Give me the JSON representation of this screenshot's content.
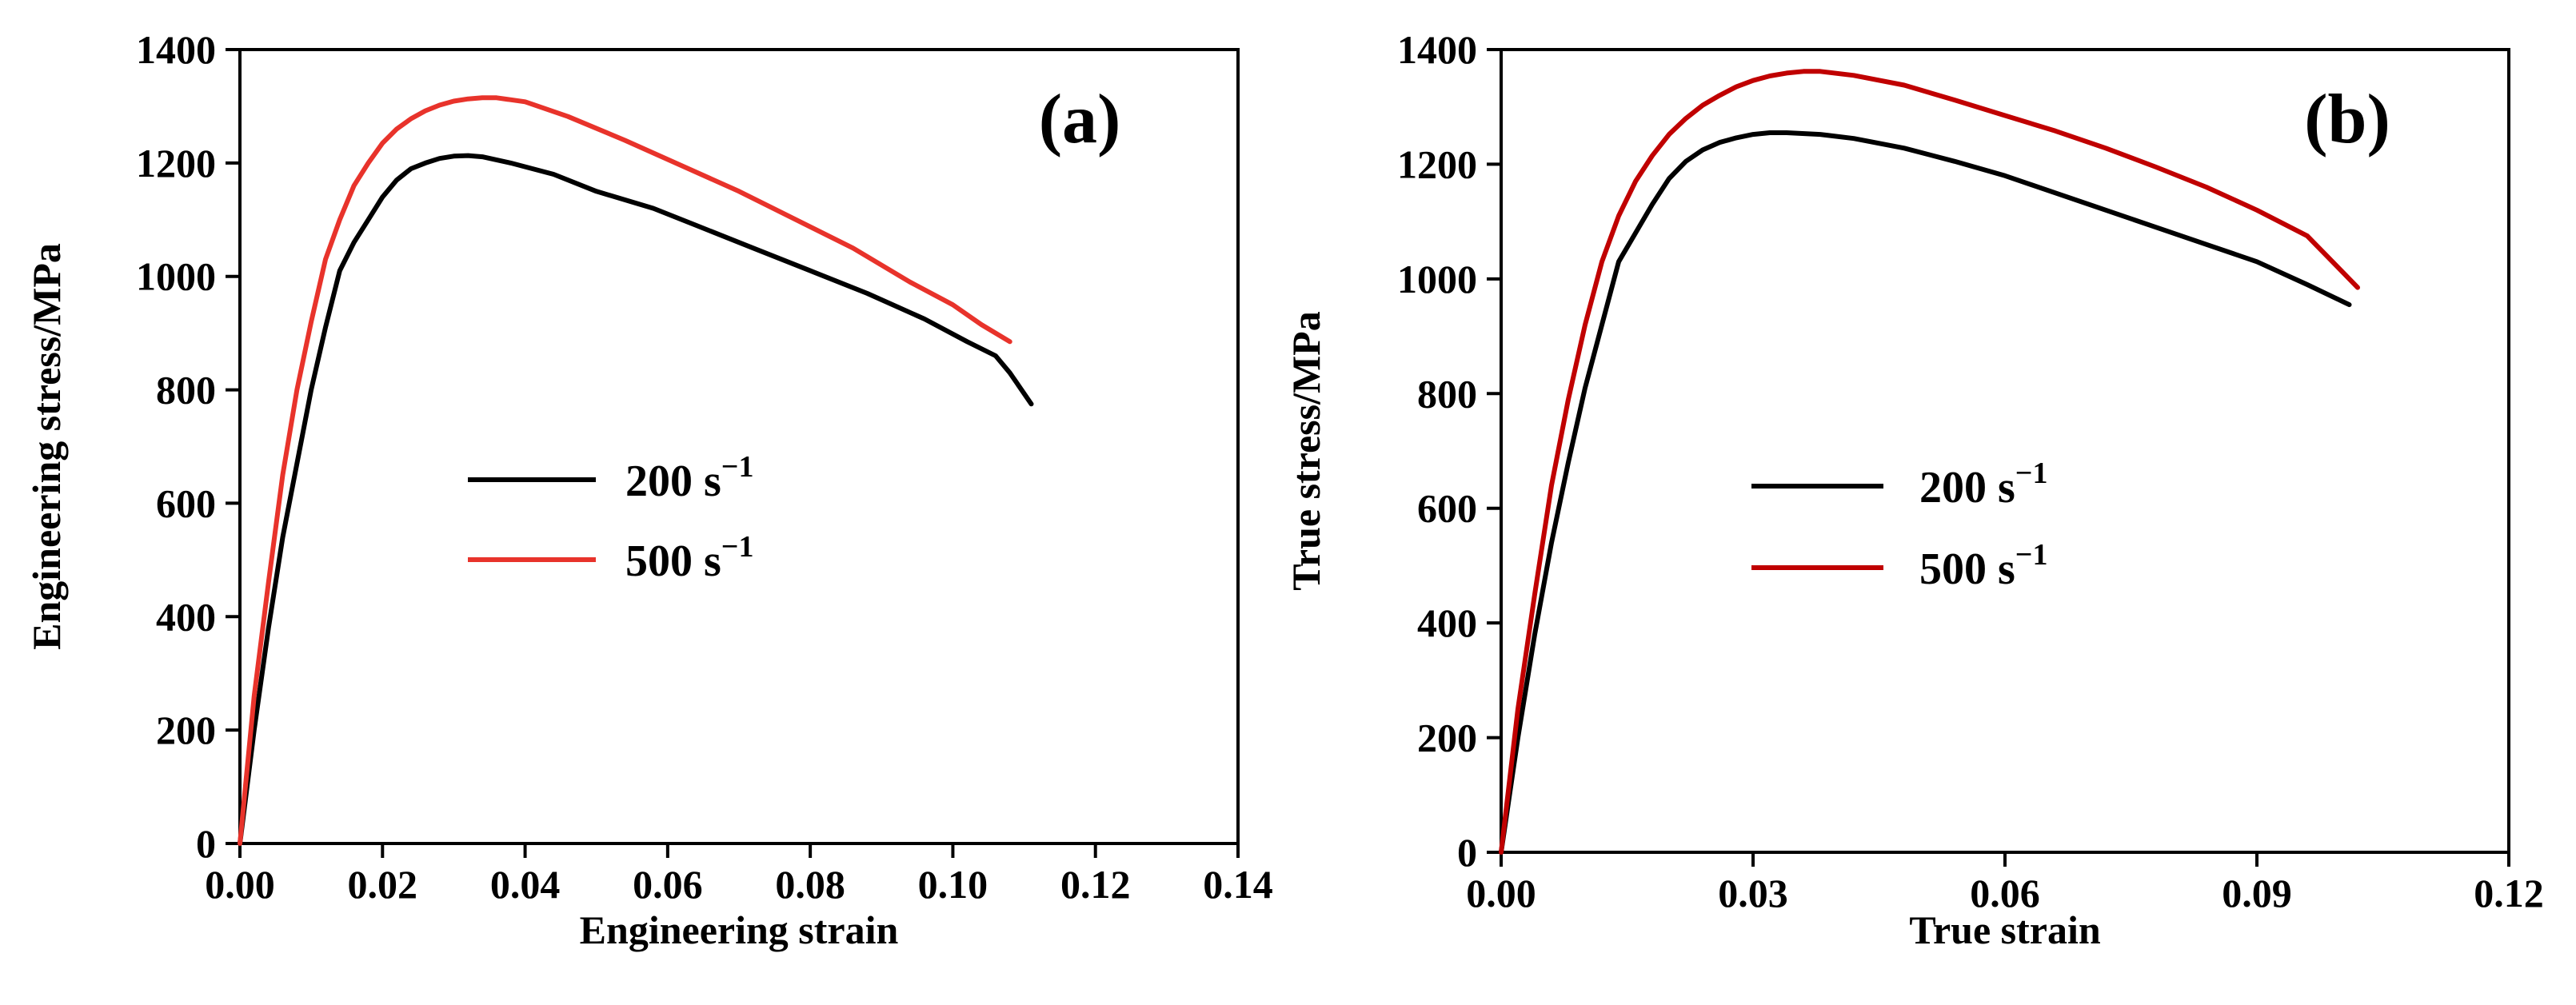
{
  "chart_data": [
    {
      "type": "line",
      "panel_label": "(a)",
      "xlabel": "Engineering strain",
      "ylabel": "Engineering stress/MPa",
      "xlim": [
        0,
        0.14
      ],
      "ylim": [
        0,
        1400
      ],
      "xticks": [
        "0.00",
        "0.02",
        "0.04",
        "0.06",
        "0.08",
        "0.10",
        "0.12",
        "0.14"
      ],
      "yticks": [
        "0",
        "200",
        "400",
        "600",
        "800",
        "1000",
        "1200",
        "1400"
      ],
      "legend": {
        "position": "center-left"
      },
      "series": [
        {
          "name": "200 s",
          "name_sup": "−1",
          "color": "#000000",
          "x": [
            0,
            0.002,
            0.004,
            0.006,
            0.008,
            0.01,
            0.012,
            0.014,
            0.016,
            0.018,
            0.02,
            0.022,
            0.024,
            0.026,
            0.028,
            0.03,
            0.032,
            0.034,
            0.038,
            0.044,
            0.05,
            0.058,
            0.064,
            0.072,
            0.08,
            0.088,
            0.096,
            0.102,
            0.106,
            0.108,
            0.111
          ],
          "y": [
            0,
            200,
            380,
            540,
            670,
            800,
            910,
            1010,
            1060,
            1100,
            1140,
            1170,
            1190,
            1200,
            1208,
            1212,
            1213,
            1211,
            1200,
            1180,
            1150,
            1120,
            1090,
            1050,
            1010,
            970,
            925,
            885,
            860,
            830,
            775
          ]
        },
        {
          "name": "500 s",
          "name_sup": "−1",
          "color": "#e8332b",
          "x": [
            0,
            0.002,
            0.004,
            0.006,
            0.008,
            0.01,
            0.012,
            0.014,
            0.016,
            0.018,
            0.02,
            0.022,
            0.024,
            0.026,
            0.028,
            0.03,
            0.032,
            0.034,
            0.036,
            0.04,
            0.046,
            0.054,
            0.062,
            0.07,
            0.078,
            0.086,
            0.094,
            0.1,
            0.104,
            0.108
          ],
          "y": [
            0,
            260,
            460,
            650,
            800,
            920,
            1030,
            1100,
            1160,
            1200,
            1235,
            1260,
            1278,
            1292,
            1302,
            1309,
            1313,
            1315,
            1315,
            1308,
            1282,
            1240,
            1195,
            1150,
            1100,
            1050,
            990,
            950,
            915,
            885
          ]
        }
      ]
    },
    {
      "type": "line",
      "panel_label": "(b)",
      "xlabel": "True strain",
      "ylabel": "True stress/MPa",
      "xlim": [
        0,
        0.12
      ],
      "ylim": [
        0,
        1400
      ],
      "xticks": [
        "0.00",
        "0.03",
        "0.06",
        "0.09",
        "0.12"
      ],
      "yticks": [
        "0",
        "200",
        "400",
        "600",
        "800",
        "1000",
        "1200",
        "1400"
      ],
      "legend": {
        "position": "center-left"
      },
      "series": [
        {
          "name": "200 s",
          "name_sup": "−1",
          "color": "#000000",
          "x": [
            0,
            0.002,
            0.004,
            0.006,
            0.008,
            0.01,
            0.012,
            0.014,
            0.016,
            0.018,
            0.02,
            0.022,
            0.024,
            0.026,
            0.028,
            0.03,
            0.032,
            0.034,
            0.038,
            0.042,
            0.048,
            0.054,
            0.06,
            0.066,
            0.072,
            0.078,
            0.084,
            0.09,
            0.096,
            0.101
          ],
          "y": [
            0,
            200,
            380,
            540,
            680,
            810,
            920,
            1030,
            1080,
            1130,
            1175,
            1205,
            1225,
            1238,
            1246,
            1252,
            1255,
            1255,
            1252,
            1245,
            1228,
            1205,
            1180,
            1150,
            1120,
            1090,
            1060,
            1030,
            990,
            955
          ]
        },
        {
          "name": "500 s",
          "name_sup": "−1",
          "color": "#c00000",
          "x": [
            0,
            0.002,
            0.004,
            0.006,
            0.008,
            0.01,
            0.012,
            0.014,
            0.016,
            0.018,
            0.02,
            0.022,
            0.024,
            0.026,
            0.028,
            0.03,
            0.032,
            0.034,
            0.036,
            0.038,
            0.042,
            0.048,
            0.054,
            0.06,
            0.066,
            0.072,
            0.078,
            0.084,
            0.09,
            0.096,
            0.102
          ],
          "y": [
            0,
            250,
            450,
            640,
            790,
            920,
            1030,
            1110,
            1170,
            1215,
            1252,
            1280,
            1303,
            1320,
            1335,
            1346,
            1354,
            1359,
            1362,
            1362,
            1355,
            1338,
            1312,
            1285,
            1258,
            1228,
            1195,
            1160,
            1120,
            1075,
            985
          ]
        }
      ]
    }
  ]
}
